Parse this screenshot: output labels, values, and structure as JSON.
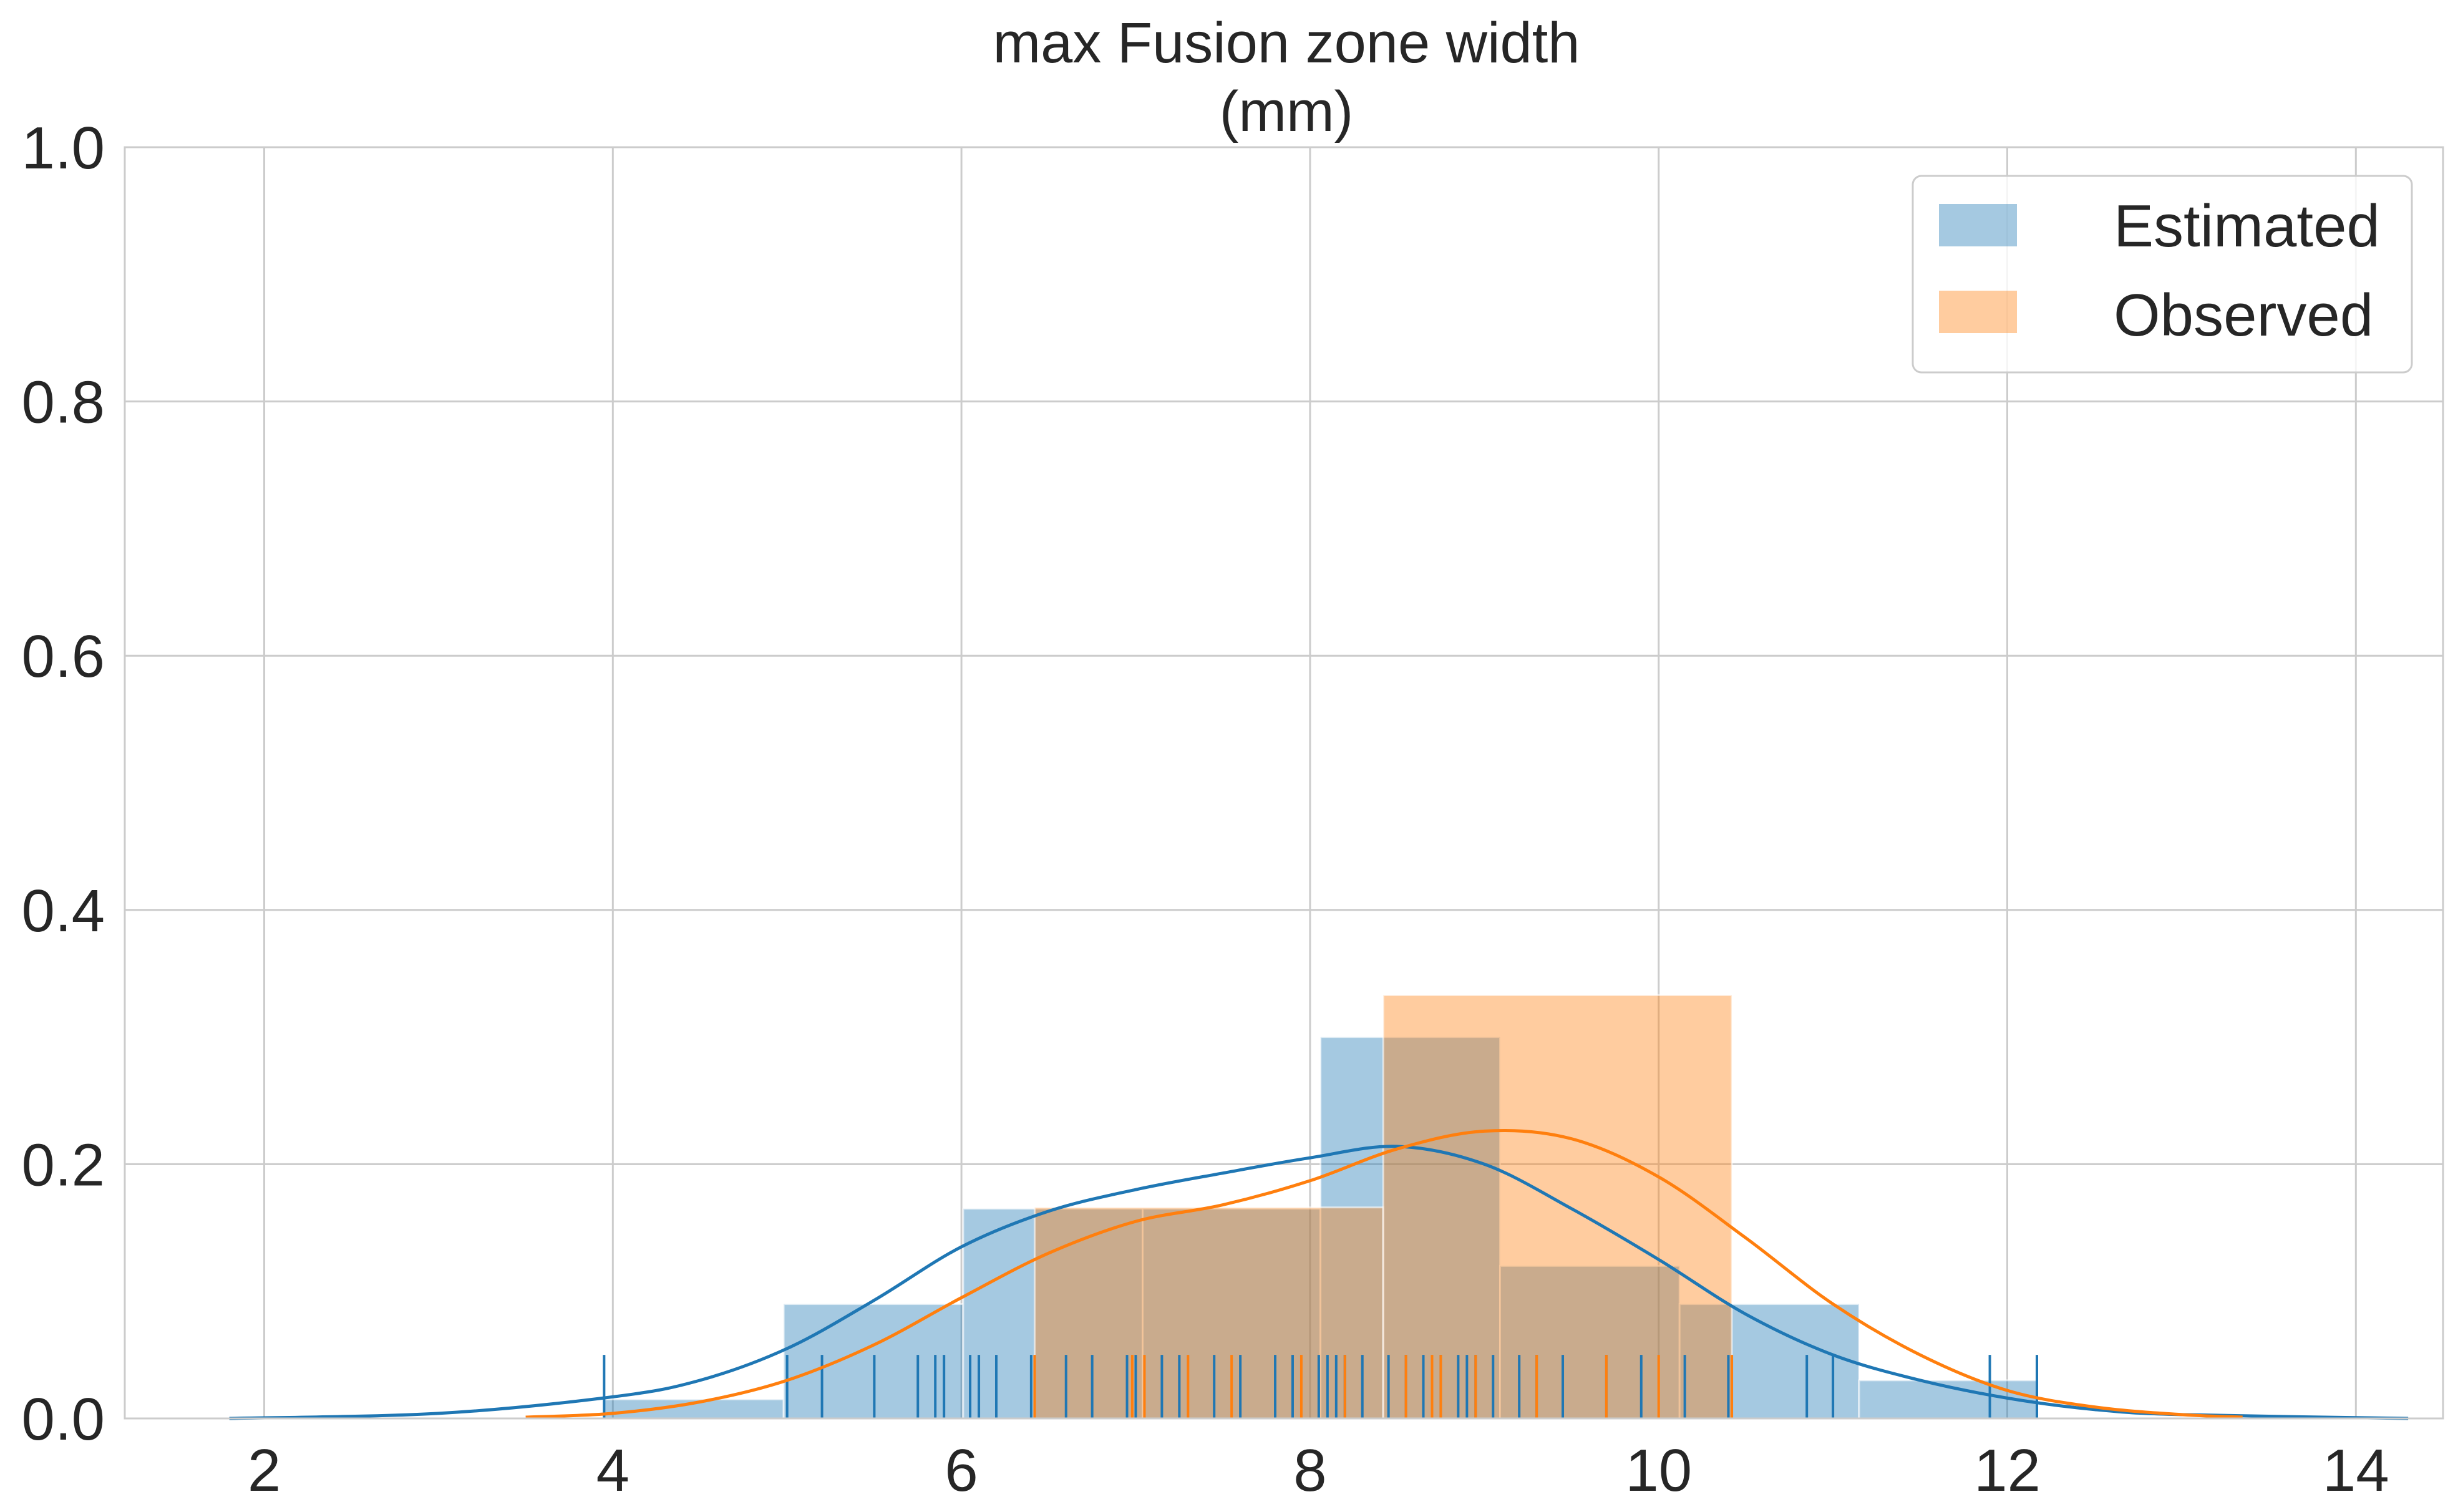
{
  "chart_data": {
    "type": "histogram",
    "title": "max Fusion zone width\n(mm)",
    "title_lines": [
      "max Fusion zone width",
      "(mm)"
    ],
    "xlabel": "",
    "ylabel": "",
    "xlim": [
      1.2,
      14.5
    ],
    "ylim": [
      0.0,
      1.0
    ],
    "xticks": [
      2,
      4,
      6,
      8,
      10,
      12,
      14
    ],
    "yticks": [
      0.0,
      0.2,
      0.4,
      0.6,
      0.8,
      1.0
    ],
    "xtick_labels": [
      "2",
      "4",
      "6",
      "8",
      "10",
      "12",
      "14"
    ],
    "ytick_labels": [
      "0.0",
      "0.2",
      "0.4",
      "0.6",
      "0.8",
      "1.0"
    ],
    "grid": true,
    "legend_position": "top-right",
    "series": [
      {
        "name": "Estimated",
        "color": "#1f77b4",
        "bin_edges": [
          3.95,
          4.98,
          6.01,
          7.04,
          8.06,
          9.09,
          10.12,
          11.15,
          12.17
        ],
        "densities": [
          0.015,
          0.09,
          0.165,
          0.165,
          0.3,
          0.12,
          0.09,
          0.03
        ],
        "rug": [
          3.95,
          5.0,
          5.2,
          5.5,
          5.75,
          5.85,
          5.9,
          6.05,
          6.1,
          6.2,
          6.4,
          6.6,
          6.75,
          6.95,
          7.0,
          7.15,
          7.25,
          7.45,
          7.6,
          7.8,
          7.9,
          8.05,
          8.1,
          8.15,
          8.2,
          8.3,
          8.45,
          8.55,
          8.65,
          8.75,
          8.85,
          8.9,
          8.95,
          9.05,
          9.2,
          9.3,
          9.45,
          9.7,
          9.9,
          10.15,
          10.4,
          10.85,
          11.0,
          11.9,
          12.17
        ],
        "kde": {
          "x": [
            1.8,
            3.0,
            4.0,
            4.5,
            5.0,
            5.5,
            6.0,
            6.5,
            7.0,
            7.5,
            8.0,
            8.5,
            9.0,
            9.5,
            10.0,
            10.5,
            11.0,
            11.5,
            12.0,
            12.5,
            13.0,
            14.3
          ],
          "y": [
            0.0,
            0.004,
            0.017,
            0.03,
            0.055,
            0.093,
            0.135,
            0.163,
            0.18,
            0.193,
            0.205,
            0.214,
            0.2,
            0.165,
            0.125,
            0.082,
            0.05,
            0.03,
            0.016,
            0.007,
            0.003,
            0.0
          ]
        }
      },
      {
        "name": "Observed",
        "color": "#ff7f0e",
        "bin_edges": [
          6.42,
          8.42,
          10.42
        ],
        "densities": [
          0.166,
          0.333
        ],
        "rug": [
          6.42,
          6.98,
          7.05,
          7.3,
          7.55,
          7.95,
          8.2,
          8.55,
          8.7,
          8.75,
          8.95,
          9.3,
          9.7,
          10.0,
          10.42
        ],
        "kde": {
          "x": [
            3.5,
            4.0,
            4.5,
            5.0,
            5.5,
            6.0,
            6.5,
            7.0,
            7.5,
            8.0,
            8.5,
            9.0,
            9.5,
            10.0,
            10.5,
            11.0,
            11.5,
            12.0,
            12.5,
            13.0,
            13.35
          ],
          "y": [
            0.001,
            0.004,
            0.013,
            0.03,
            0.058,
            0.095,
            0.13,
            0.155,
            0.168,
            0.187,
            0.212,
            0.226,
            0.22,
            0.19,
            0.142,
            0.09,
            0.05,
            0.022,
            0.009,
            0.003,
            0.001
          ]
        }
      }
    ]
  }
}
